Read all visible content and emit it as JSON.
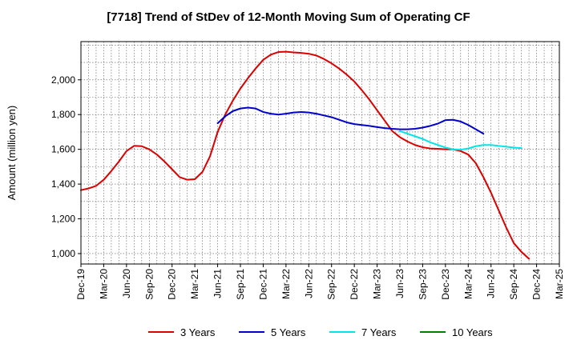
{
  "chart_data": {
    "type": "line",
    "title": "[7718]  Trend of StDev of 12-Month Moving Sum of Operating CF",
    "xlabel": "",
    "ylabel": "Amount (million yen)",
    "ylim": [
      940,
      2220
    ],
    "y_ticks": [
      1000,
      1200,
      1400,
      1600,
      1800,
      2000
    ],
    "y_tick_labels": [
      "1,000",
      "1,200",
      "1,400",
      "1,600",
      "1,800",
      "2,000"
    ],
    "x_ticks": [
      "Dec-19",
      "Mar-20",
      "Jun-20",
      "Sep-20",
      "Dec-20",
      "Mar-21",
      "Jun-21",
      "Sep-21",
      "Dec-21",
      "Mar-22",
      "Jun-22",
      "Sep-22",
      "Dec-22",
      "Mar-23",
      "Jun-23",
      "Sep-23",
      "Dec-23",
      "Mar-24",
      "Jun-24",
      "Sep-24",
      "Dec-24",
      "Mar-25"
    ],
    "grid": true,
    "legend_position": "bottom",
    "series": [
      {
        "name": "3 Years",
        "color": "#dd0000",
        "start_index": 0,
        "values": [
          1365,
          1375,
          1390,
          1425,
          1475,
          1530,
          1590,
          1620,
          1618,
          1600,
          1570,
          1530,
          1485,
          1440,
          1425,
          1428,
          1470,
          1560,
          1700,
          1800,
          1880,
          1950,
          2010,
          2065,
          2115,
          2145,
          2160,
          2162,
          2158,
          2155,
          2150,
          2140,
          2120,
          2095,
          2065,
          2030,
          1990,
          1940,
          1885,
          1825,
          1765,
          1705,
          1670,
          1645,
          1625,
          1612,
          1605,
          1603,
          1600,
          1600,
          1590,
          1570,
          1520,
          1440,
          1350,
          1250,
          1150,
          1060,
          1010,
          970
        ]
      },
      {
        "name": "5 Years",
        "color": "#0000cc",
        "start_index": 18,
        "values": [
          1750,
          1790,
          1820,
          1835,
          1840,
          1835,
          1815,
          1805,
          1800,
          1805,
          1812,
          1815,
          1812,
          1805,
          1795,
          1785,
          1770,
          1755,
          1745,
          1740,
          1735,
          1728,
          1722,
          1718,
          1715,
          1715,
          1718,
          1725,
          1735,
          1748,
          1768,
          1770,
          1760,
          1740,
          1715,
          1690
        ]
      },
      {
        "name": "7 Years",
        "color": "#00e5e5",
        "start_index": 42,
        "values": [
          1705,
          1690,
          1675,
          1660,
          1640,
          1625,
          1610,
          1600,
          1598,
          1605,
          1618,
          1625,
          1625,
          1620,
          1615,
          1610,
          1607
        ]
      },
      {
        "name": "10 Years",
        "color": "#008000",
        "start_index": 0,
        "values": []
      }
    ]
  }
}
